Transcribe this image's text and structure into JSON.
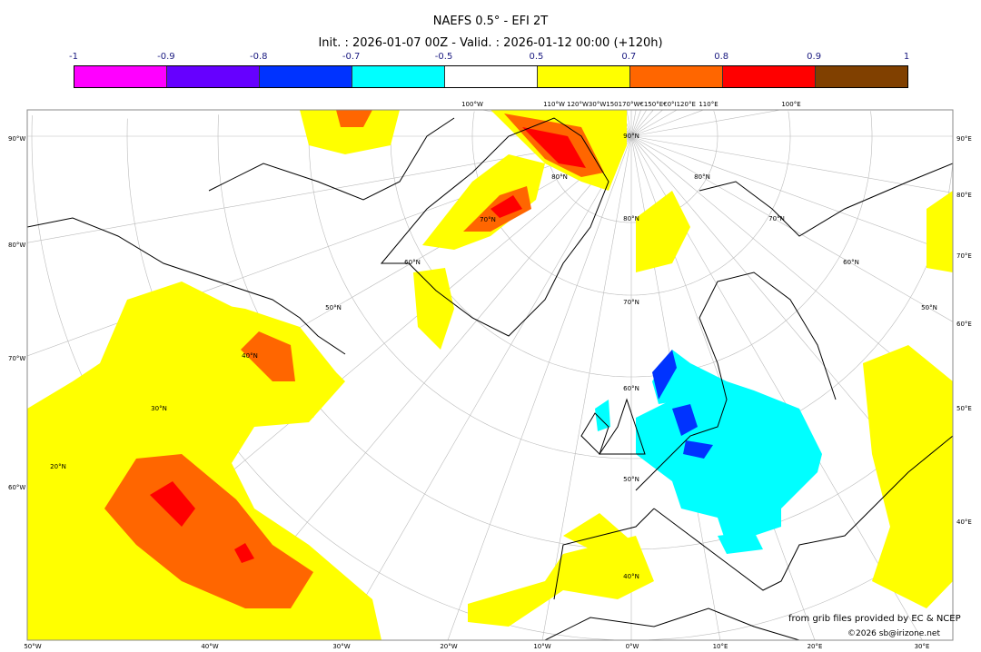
{
  "title": "NAEFS 0.5° - EFI 2T",
  "subtitle": "Init. : 2026-01-07 00Z - Valid. : 2026-01-12 00:00 (+120h)",
  "colorbar": {
    "ticks": [
      "-1",
      "-0.9",
      "-0.8",
      "-0.7",
      "-0.5",
      "0.5",
      "0.7",
      "0.8",
      "0.9",
      "1"
    ],
    "colors": [
      "#ff00ff",
      "#6600ff",
      "#0033ff",
      "#00ffff",
      "#ffffff",
      "#ffff00",
      "#ff6600",
      "#ff0000",
      "#804000"
    ]
  },
  "map": {
    "left_labels": [
      "90°W",
      "80°W",
      "70°W",
      "60°W"
    ],
    "right_labels": [
      "90°E",
      "80°E",
      "70°E",
      "60°E",
      "50°E",
      "40°E"
    ],
    "bottom_labels": [
      "50°W",
      "40°W",
      "30°W",
      "20°W",
      "10°W",
      "0°W",
      "10°E",
      "20°E",
      "30°E"
    ],
    "top_labels": [
      "100°W",
      "110°W",
      "120°W30°W150170°W€150°E€0°I120°E",
      "110°E",
      "100°E"
    ],
    "lat_labels": [
      "90°N",
      "80°N",
      "70°N",
      "60°N",
      "50°N",
      "40°N",
      "30°N",
      "20°N",
      "80°N",
      "70°N",
      "60°N",
      "50°N",
      "80°N",
      "70°N",
      "60°N",
      "50°N",
      "40°N"
    ]
  },
  "footer": {
    "credit": "from grib files provided by EC & NCEP",
    "copyright": "©2026 sb@irizone.net"
  }
}
